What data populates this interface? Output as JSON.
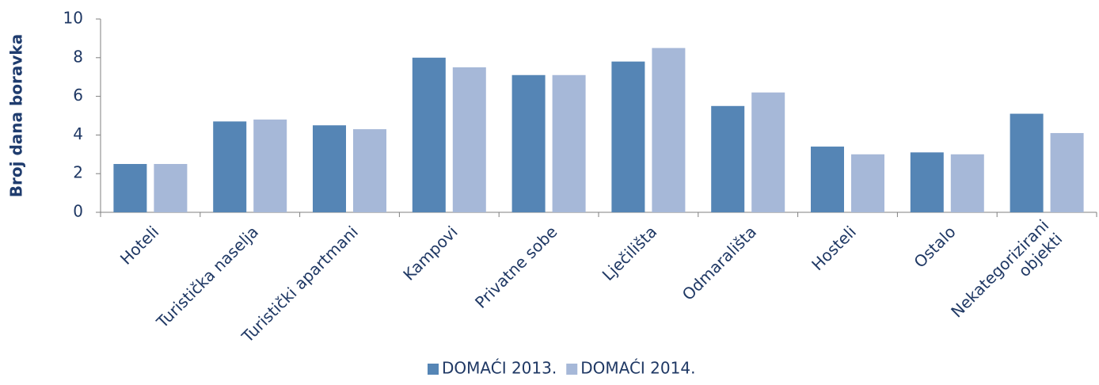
{
  "chart_data": {
    "type": "bar",
    "y_label": "Broj dana boravka",
    "categories": [
      "Hoteli",
      "Turistička naselja",
      "Turistički apartmani",
      "Kampovi",
      "Privatne sobe",
      "Lječilišta",
      "Odmarališta",
      "Hosteli",
      "Ostalo",
      "Nekategorizirani objekti"
    ],
    "series": [
      {
        "name": "DOMAĆI 2013.",
        "color": "#5585b5",
        "values": [
          2.5,
          4.7,
          4.5,
          8.0,
          7.1,
          7.8,
          5.5,
          3.4,
          3.1,
          5.1
        ]
      },
      {
        "name": "DOMAĆI 2014.",
        "color": "#a6b8d8",
        "values": [
          2.5,
          4.8,
          4.3,
          7.5,
          7.1,
          8.5,
          6.2,
          3.0,
          3.0,
          4.1
        ]
      }
    ],
    "ylim": [
      0,
      10
    ],
    "yticks": [
      0,
      2,
      4,
      6,
      8,
      10
    ],
    "grid": false,
    "legend": "bottom"
  }
}
